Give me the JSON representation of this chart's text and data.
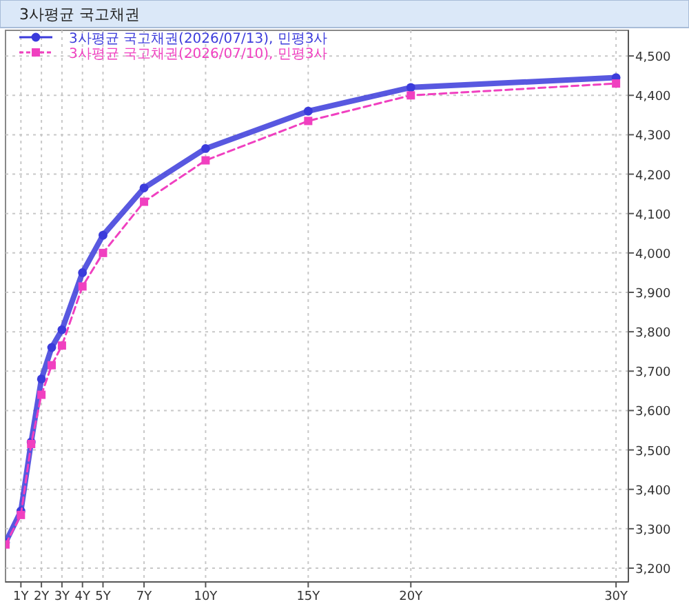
{
  "chart_data": {
    "type": "line",
    "title": "3사평균 국고채권",
    "x": [
      0.25,
      1,
      1.5,
      2,
      2.5,
      3,
      4,
      5,
      7,
      10,
      15,
      20,
      30
    ],
    "series": [
      {
        "name": "3사평균 국고채권(2026/07/13), 민평3사",
        "color": "#3b3bdb",
        "marker": "circle",
        "line_style": "solid",
        "values": [
          3265,
          3345,
          3520,
          3680,
          3760,
          3805,
          3950,
          4045,
          4165,
          4265,
          4360,
          4420,
          4445
        ]
      },
      {
        "name": "3사평균 국고채권(2026/07/10), 민평3사",
        "color": "#f040c0",
        "marker": "square",
        "line_style": "dashed",
        "values": [
          3260,
          3335,
          3515,
          3640,
          3715,
          3765,
          3915,
          4000,
          4130,
          4235,
          4335,
          4400,
          4430
        ]
      }
    ],
    "xlim": [
      0.25,
      30.6
    ],
    "xticks": [
      {
        "value": 1,
        "label": "1Y"
      },
      {
        "value": 2,
        "label": "2Y"
      },
      {
        "value": 3,
        "label": "3Y"
      },
      {
        "value": 4,
        "label": "4Y"
      },
      {
        "value": 5,
        "label": "5Y"
      },
      {
        "value": 7,
        "label": "7Y"
      },
      {
        "value": 10,
        "label": "10Y"
      },
      {
        "value": 15,
        "label": "15Y"
      },
      {
        "value": 20,
        "label": "20Y"
      },
      {
        "value": 30,
        "label": "30Y"
      }
    ],
    "ylim": [
      3165,
      4565
    ],
    "yticks": [
      {
        "value": 3200,
        "label": "3,200"
      },
      {
        "value": 3300,
        "label": "3,300"
      },
      {
        "value": 3400,
        "label": "3,400"
      },
      {
        "value": 3500,
        "label": "3,500"
      },
      {
        "value": 3600,
        "label": "3,600"
      },
      {
        "value": 3700,
        "label": "3,700"
      },
      {
        "value": 3800,
        "label": "3,800"
      },
      {
        "value": 3900,
        "label": "3,900"
      },
      {
        "value": 4000,
        "label": "4,000"
      },
      {
        "value": 4100,
        "label": "4,100"
      },
      {
        "value": 4200,
        "label": "4,200"
      },
      {
        "value": 4300,
        "label": "4,300"
      },
      {
        "value": 4400,
        "label": "4,400"
      },
      {
        "value": 4500,
        "label": "4,500"
      }
    ],
    "grid": true,
    "legend": "top left"
  }
}
